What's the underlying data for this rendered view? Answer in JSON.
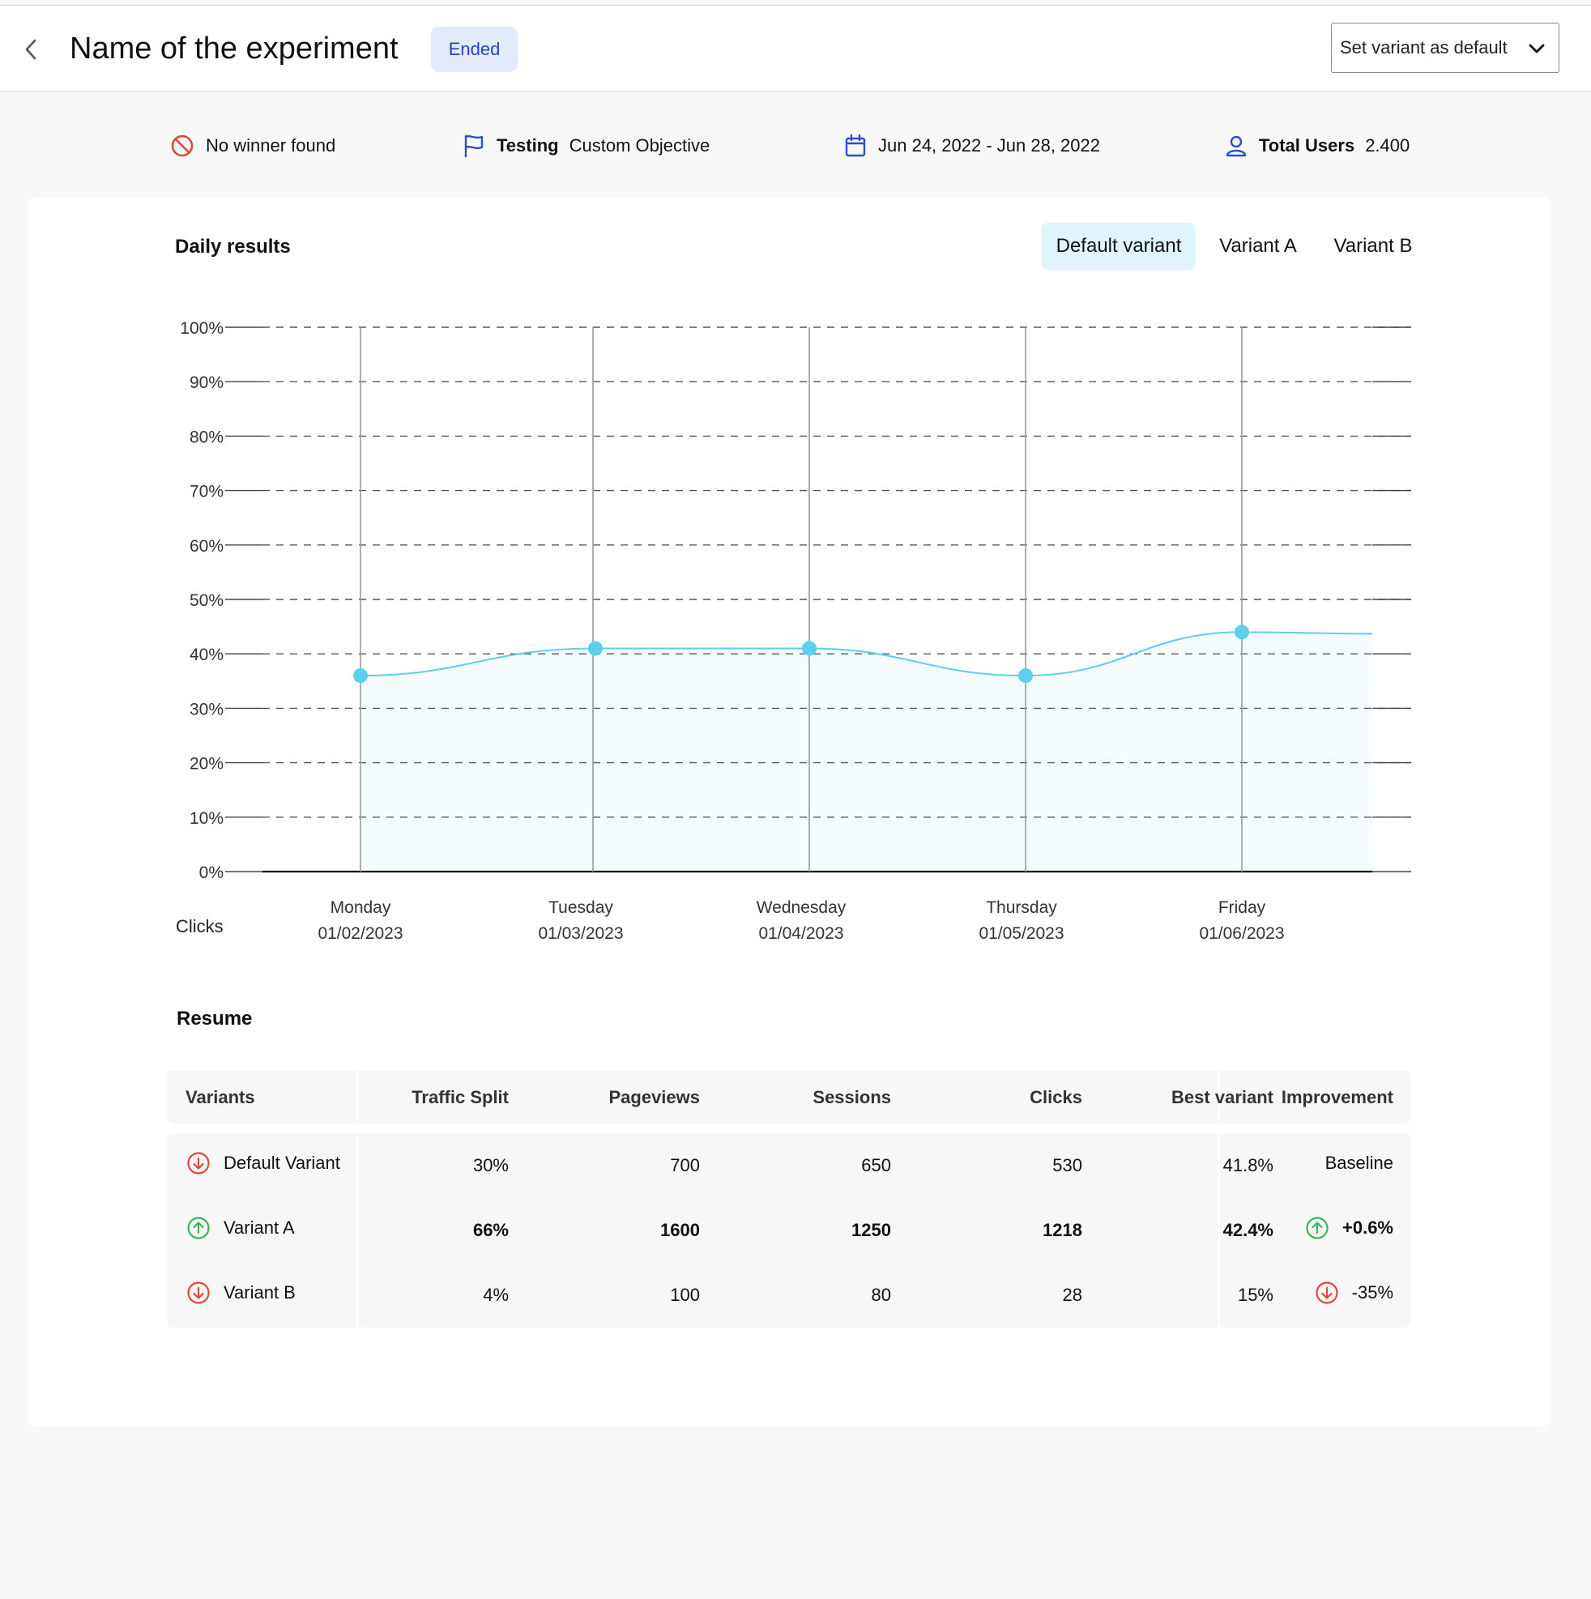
{
  "header": {
    "title": "Name of the experiment",
    "status_badge": "Ended",
    "action_dropdown": "Set variant as default"
  },
  "stats": {
    "winner": "No winner found",
    "testing_label": "Testing",
    "testing_value": "Custom Objective",
    "date_range": "Jun 24, 2022 - Jun 28, 2022",
    "users_label": "Total Users",
    "users_value": "2.400"
  },
  "daily": {
    "title": "Daily results",
    "tabs": [
      {
        "label": "Default variant",
        "active": true
      },
      {
        "label": "Variant A",
        "active": false
      },
      {
        "label": "Variant B",
        "active": false
      }
    ],
    "metric_label": "Clicks"
  },
  "chart_data": {
    "type": "line",
    "title": "Daily results",
    "xlabel": "Clicks",
    "ylabel": "",
    "ylim": [
      0,
      100
    ],
    "yticks": [
      "100%",
      "90%",
      "80%",
      "70%",
      "60%",
      "50%",
      "40%",
      "30%",
      "20%",
      "10%",
      "0%"
    ],
    "categories": [
      {
        "day": "Monday",
        "date": "01/02/2023"
      },
      {
        "day": "Tuesday",
        "date": "01/03/2023"
      },
      {
        "day": "Wednesday",
        "date": "01/04/2023"
      },
      {
        "day": "Thursday",
        "date": "01/05/2023"
      },
      {
        "day": "Friday",
        "date": "01/06/2023"
      }
    ],
    "series": [
      {
        "name": "Default variant",
        "values": [
          36,
          41,
          41,
          36,
          44
        ],
        "color": "#5bcfed"
      }
    ],
    "grid": true
  },
  "resume": {
    "title": "Resume",
    "columns": [
      "Variants",
      "Traffic Split",
      "Pageviews",
      "Sessions",
      "Clicks",
      "Best variant",
      "Improvement"
    ],
    "rows": [
      {
        "name": "Default Variant",
        "trend": "down",
        "traffic": "30%",
        "pageviews": "700",
        "sessions": "650",
        "clicks": "530",
        "best": "41.8%",
        "improvement": "Baseline",
        "impr_trend": "none",
        "bold": false
      },
      {
        "name": "Variant A",
        "trend": "up",
        "traffic": "66%",
        "pageviews": "1600",
        "sessions": "1250",
        "clicks": "1218",
        "best": "42.4%",
        "improvement": "+0.6%",
        "impr_trend": "up",
        "bold": true
      },
      {
        "name": "Variant B",
        "trend": "down",
        "traffic": "4%",
        "pageviews": "100",
        "sessions": "80",
        "clicks": "28",
        "best": "15%",
        "improvement": "-35%",
        "impr_trend": "down",
        "bold": false
      }
    ]
  },
  "colors": {
    "up": "#3cb55a",
    "down": "#e0473a",
    "badge_bg": "#e3ebfa",
    "badge_text": "#2446b8",
    "icon_blue": "#2d4fc4",
    "line": "#5bcfed"
  }
}
